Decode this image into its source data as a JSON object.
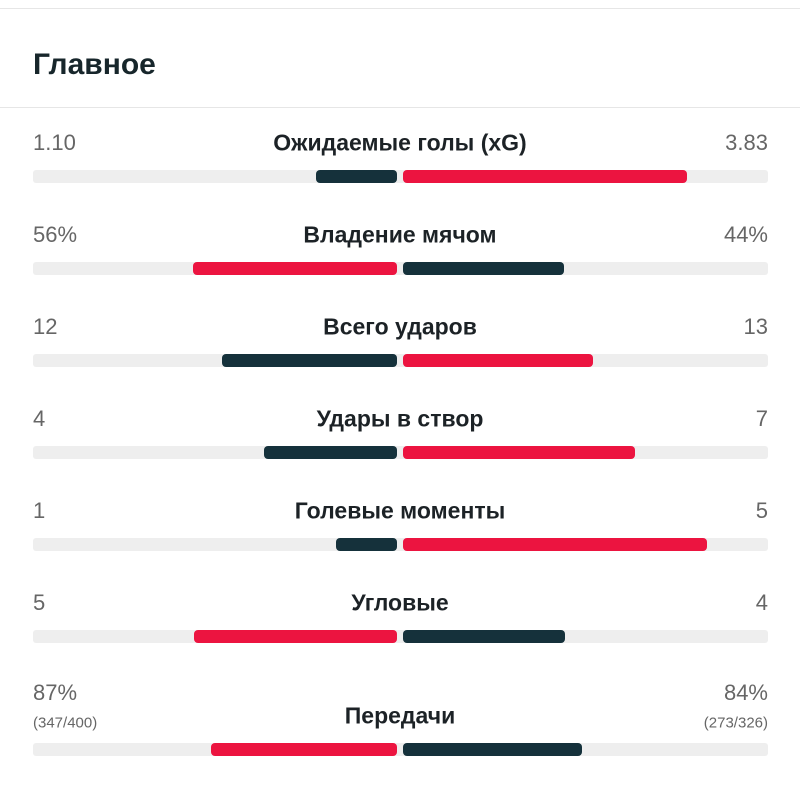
{
  "header": {
    "title": "Главное"
  },
  "colors": {
    "leading": "#ec1440",
    "trailing": "#15313b",
    "track": "#eeeeee"
  },
  "rows": [
    {
      "label": "Ожидаемые голы (xG)",
      "home": {
        "value": 1.1,
        "label": "1.10"
      },
      "away": {
        "value": 3.83,
        "label": "3.83"
      }
    },
    {
      "label": "Владение мячом",
      "home": {
        "value": 56,
        "label": "56%"
      },
      "away": {
        "value": 44,
        "label": "44%"
      }
    },
    {
      "label": "Всего ударов",
      "home": {
        "value": 12,
        "label": "12"
      },
      "away": {
        "value": 13,
        "label": "13"
      }
    },
    {
      "label": "Удары в створ",
      "home": {
        "value": 4,
        "label": "4"
      },
      "away": {
        "value": 7,
        "label": "7"
      }
    },
    {
      "label": "Голевые моменты",
      "home": {
        "value": 1,
        "label": "1"
      },
      "away": {
        "value": 5,
        "label": "5"
      }
    },
    {
      "label": "Угловые",
      "home": {
        "value": 5,
        "label": "5"
      },
      "away": {
        "value": 4,
        "label": "4"
      }
    },
    {
      "label": "Передачи",
      "home": {
        "value": 87,
        "label": "87%",
        "detail": "(347/400)"
      },
      "away": {
        "value": 84,
        "label": "84%",
        "detail": "(273/326)"
      }
    }
  ]
}
